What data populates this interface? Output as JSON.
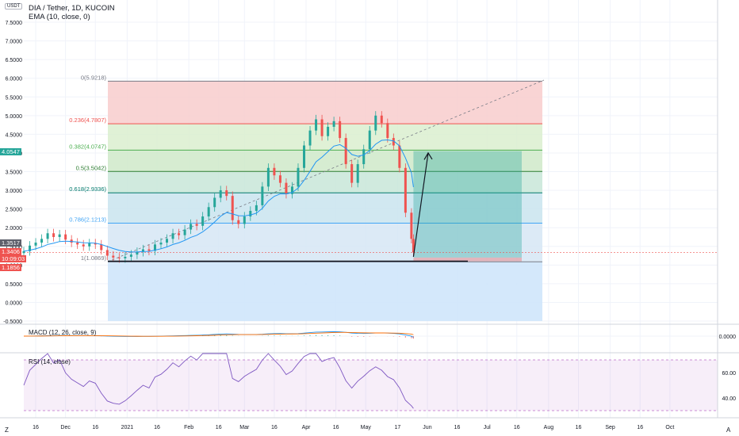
{
  "header": {
    "title": "DIA / Tether, 1D, KUCOIN",
    "indicator": "EMA (10, close, 0)",
    "symbol_badge": "USDT"
  },
  "macd_label": "MACD (12, 26, close, 9)",
  "rsi_label": "RSI (14, close)",
  "price_axis_labels": [
    "7.5000",
    "7.0000",
    "6.5000",
    "6.0000",
    "5.5000",
    "5.0000",
    "4.5000",
    "4.0000",
    "3.5000",
    "3.0000",
    "2.5000",
    "2.0000",
    "1.5000",
    "1.0000",
    "0.5000",
    "0.0000",
    "-0.5000"
  ],
  "macd_axis_label": "0.0000",
  "rsi_axis_labels": [
    "60.00",
    "40.00"
  ],
  "price_badges": {
    "fib_badge": "4.0547",
    "current_price": "1.3517",
    "last_price": "1.3406",
    "countdown": "10:09:03",
    "low_badge": "1.1856"
  },
  "time_axis_labels": [
    "16",
    "Dec",
    "16",
    "2021",
    "16",
    "Feb",
    "16",
    "Mar",
    "16",
    "Apr",
    "16",
    "May",
    "17",
    "Jun",
    "16",
    "Jul",
    "16",
    "Aug",
    "16",
    "Sep",
    "16",
    "Oct"
  ],
  "bottom_left": "Z",
  "bottom_right": "A",
  "colors": {
    "up": "#26a69a",
    "down": "#ef5350",
    "ema": "#2196f3",
    "macd": "#2196f3",
    "signal": "#ff6d00",
    "rsi": "#7e57c2"
  },
  "chart_data": {
    "type": "candlestick",
    "x_range": [
      "2020-11-10",
      "2021-10-25"
    ],
    "y_range": [
      -0.5,
      7.5
    ],
    "candles": [
      {
        "date": "2020-11-10",
        "close": 1.37
      },
      {
        "date": "2020-11-13",
        "close": 1.52
      },
      {
        "date": "2020-11-16",
        "close": 1.6
      },
      {
        "date": "2020-11-19",
        "close": 1.7
      },
      {
        "date": "2020-11-22",
        "close": 1.85
      },
      {
        "date": "2020-11-25",
        "close": 1.75
      },
      {
        "date": "2020-11-28",
        "close": 1.82
      },
      {
        "date": "2020-12-01",
        "close": 1.68
      },
      {
        "date": "2020-12-04",
        "close": 1.6
      },
      {
        "date": "2020-12-07",
        "close": 1.55
      },
      {
        "date": "2020-12-10",
        "close": 1.5
      },
      {
        "date": "2020-12-13",
        "close": 1.58
      },
      {
        "date": "2020-12-16",
        "close": 1.55
      },
      {
        "date": "2020-12-19",
        "close": 1.4
      },
      {
        "date": "2020-12-22",
        "close": 1.25
      },
      {
        "date": "2020-12-25",
        "close": 1.2
      },
      {
        "date": "2020-12-28",
        "close": 1.18
      },
      {
        "date": "2020-12-31",
        "close": 1.22
      },
      {
        "date": "2021-01-03",
        "close": 1.28
      },
      {
        "date": "2021-01-06",
        "close": 1.35
      },
      {
        "date": "2021-01-09",
        "close": 1.42
      },
      {
        "date": "2021-01-12",
        "close": 1.38
      },
      {
        "date": "2021-01-15",
        "close": 1.55
      },
      {
        "date": "2021-01-18",
        "close": 1.6
      },
      {
        "date": "2021-01-21",
        "close": 1.7
      },
      {
        "date": "2021-01-24",
        "close": 1.85
      },
      {
        "date": "2021-01-27",
        "close": 1.8
      },
      {
        "date": "2021-01-30",
        "close": 1.95
      },
      {
        "date": "2021-02-02",
        "close": 2.1
      },
      {
        "date": "2021-02-05",
        "close": 2.05
      },
      {
        "date": "2021-02-08",
        "close": 2.3
      },
      {
        "date": "2021-02-11",
        "close": 2.55
      },
      {
        "date": "2021-02-14",
        "close": 2.8
      },
      {
        "date": "2021-02-17",
        "close": 3.0
      },
      {
        "date": "2021-02-20",
        "close": 2.85
      },
      {
        "date": "2021-02-23",
        "close": 2.2
      },
      {
        "date": "2021-02-26",
        "close": 2.1
      },
      {
        "date": "2021-03-01",
        "close": 2.3
      },
      {
        "date": "2021-03-04",
        "close": 2.45
      },
      {
        "date": "2021-03-07",
        "close": 2.6
      },
      {
        "date": "2021-03-10",
        "close": 3.1
      },
      {
        "date": "2021-03-13",
        "close": 3.6
      },
      {
        "date": "2021-03-16",
        "close": 3.4
      },
      {
        "date": "2021-03-19",
        "close": 3.2
      },
      {
        "date": "2021-03-22",
        "close": 2.9
      },
      {
        "date": "2021-03-25",
        "close": 3.1
      },
      {
        "date": "2021-03-28",
        "close": 3.6
      },
      {
        "date": "2021-03-31",
        "close": 4.2
      },
      {
        "date": "2021-04-03",
        "close": 4.6
      },
      {
        "date": "2021-04-06",
        "close": 4.9
      },
      {
        "date": "2021-04-09",
        "close": 4.45
      },
      {
        "date": "2021-04-12",
        "close": 4.7
      },
      {
        "date": "2021-04-15",
        "close": 4.85
      },
      {
        "date": "2021-04-18",
        "close": 4.4
      },
      {
        "date": "2021-04-21",
        "close": 3.7
      },
      {
        "date": "2021-04-24",
        "close": 3.2
      },
      {
        "date": "2021-04-27",
        "close": 3.7
      },
      {
        "date": "2021-04-30",
        "close": 4.1
      },
      {
        "date": "2021-05-03",
        "close": 4.6
      },
      {
        "date": "2021-05-06",
        "close": 5.0
      },
      {
        "date": "2021-05-09",
        "close": 4.8
      },
      {
        "date": "2021-05-12",
        "close": 4.4
      },
      {
        "date": "2021-05-15",
        "close": 4.2
      },
      {
        "date": "2021-05-18",
        "close": 3.6
      },
      {
        "date": "2021-05-21",
        "close": 2.4
      },
      {
        "date": "2021-05-24",
        "close": 1.7
      },
      {
        "date": "2021-05-25",
        "close": 1.34
      }
    ],
    "fibonacci": {
      "levels": [
        {
          "label": "0(5.9218)",
          "value": 5.9218,
          "fill": "#f8cdcd"
        },
        {
          "label": "0.236(4.7807)",
          "value": 4.7807,
          "fill": "#dbefcf"
        },
        {
          "label": "0.382(4.0747)",
          "value": 4.0747,
          "fill": "#cfe9c9"
        },
        {
          "label": "0.5(3.5042)",
          "value": 3.5042,
          "fill": "#c8e6d8"
        },
        {
          "label": "0.618(2.9336)",
          "value": 2.9336,
          "fill": "#c9e4ee"
        },
        {
          "label": "0.786(2.1213)",
          "value": 2.1213,
          "fill": "#d6e6f5"
        },
        {
          "label": "1(1.0869)",
          "value": 1.0869,
          "fill": "#e0e0e0"
        }
      ],
      "label_colors": [
        "#787b86",
        "#ef5350",
        "#4caf50",
        "#2e7d32",
        "#00796b",
        "#42a5f5",
        "#787b86"
      ]
    },
    "long_position": {
      "entry": 1.2,
      "target": 4.05,
      "stop": 1.1
    },
    "macd_zero": 0.0,
    "rsi_levels": [
      70,
      30
    ],
    "rsi_range": [
      25,
      75
    ]
  }
}
